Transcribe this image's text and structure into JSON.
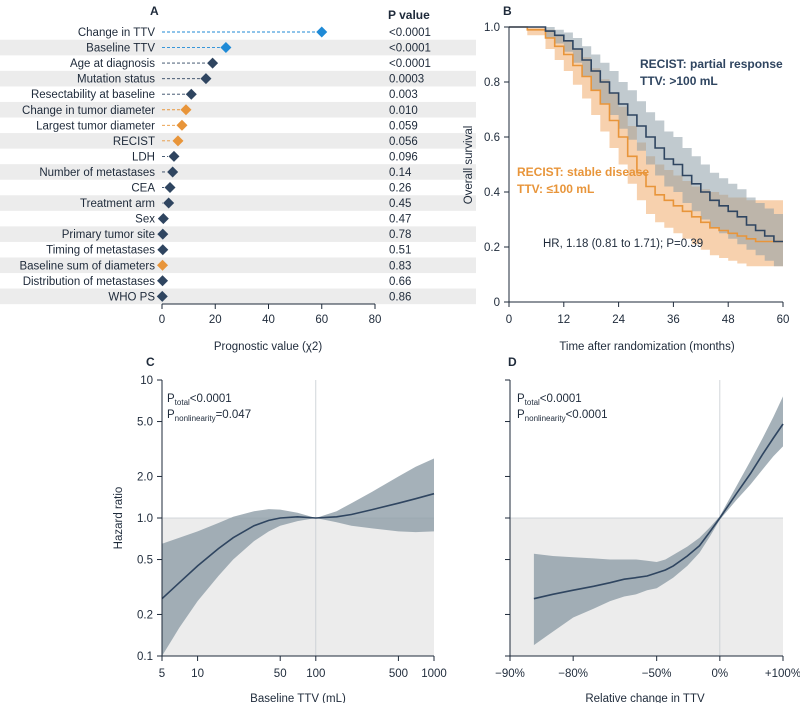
{
  "colors": {
    "navy": "#2f4560",
    "blue": "#1f8ad6",
    "orange": "#e8953a",
    "band_gray": "#8e9ea8",
    "stripe": "#ececec",
    "orange_band": "#f6c9a0",
    "axis": "#1e2a3a"
  },
  "panels": {
    "A": {
      "letter": "A",
      "pvalue_header": "P value",
      "xlabel": "Prognostic value (χ2)",
      "xticks": [
        "0",
        "20",
        "40",
        "60",
        "80"
      ]
    },
    "B": {
      "letter": "B",
      "ylabel": "Overall survival",
      "xlabel": "Time after randomization (months)",
      "xticks": [
        "0",
        "12",
        "24",
        "36",
        "48",
        "60"
      ],
      "yticks": [
        "0",
        "0.2",
        "0.4",
        "0.6",
        "0.8",
        "1.0"
      ],
      "label_navy_1": "RECIST: partial response",
      "label_navy_2": "TTV: >100 mL",
      "label_orange_1": "RECIST: stable disease",
      "label_orange_2": "TTV: ≤100 mL",
      "hr_text": "HR, 1.18 (0.81 to 1.71); P=0.39"
    },
    "C": {
      "letter": "C",
      "ylabel": "Hazard ratio",
      "xlabel": "Baseline TTV (mL)",
      "xticks": [
        "5",
        "10",
        "50",
        "100",
        "500",
        "1000"
      ],
      "yticks": [
        "0.1",
        "0.2",
        "0.5",
        "1.0",
        "2.0",
        "5.0",
        "10"
      ],
      "p_total_label": "P",
      "p_total_sub": "total",
      "p_total_value": "<0.0001",
      "p_nonlin_label": "P",
      "p_nonlin_sub": "nonlinearity",
      "p_nonlin_value": "=0.047"
    },
    "D": {
      "letter": "D",
      "xlabel": "Relative change in TTV",
      "xticks": [
        "−90%",
        "−80%",
        "−50%",
        "0%",
        "+100%"
      ],
      "p_total_label": "P",
      "p_total_sub": "total",
      "p_total_value": "<0.0001",
      "p_nonlin_label": "P",
      "p_nonlin_sub": "nonlinearity",
      "p_nonlin_value": "<0.0001"
    }
  },
  "chart_data": [
    {
      "panel": "A",
      "type": "scatter",
      "xlabel": "Prognostic value (χ2)",
      "xlim": [
        0,
        80
      ],
      "items": [
        {
          "label": "Change in TTV",
          "value": 60,
          "p": "<0.0001",
          "color": "#1f8ad6"
        },
        {
          "label": "Baseline TTV",
          "value": 24,
          "p": "<0.0001",
          "color": "#1f8ad6"
        },
        {
          "label": "Age at diagnosis",
          "value": 19,
          "p": "<0.0001",
          "color": "#2f4560"
        },
        {
          "label": "Mutation status",
          "value": 16.5,
          "p": "0.0003",
          "color": "#2f4560"
        },
        {
          "label": "Resectability at baseline",
          "value": 11,
          "p": "0.003",
          "color": "#2f4560"
        },
        {
          "label": "Change in tumor diameter",
          "value": 9,
          "p": "0.010",
          "color": "#e8953a"
        },
        {
          "label": "Largest tumor diameter",
          "value": 7.5,
          "p": "0.059",
          "color": "#e8953a"
        },
        {
          "label": "RECIST",
          "value": 6,
          "p": "0.056",
          "color": "#e8953a"
        },
        {
          "label": "LDH",
          "value": 4.5,
          "p": "0.096",
          "color": "#2f4560"
        },
        {
          "label": "Number of metastases",
          "value": 4,
          "p": "0.14",
          "color": "#2f4560"
        },
        {
          "label": "CEA",
          "value": 3,
          "p": "0.26",
          "color": "#2f4560"
        },
        {
          "label": "Treatment arm",
          "value": 2.5,
          "p": "0.45",
          "color": "#2f4560"
        },
        {
          "label": "Sex",
          "value": 0.5,
          "p": "0.47",
          "color": "#2f4560"
        },
        {
          "label": "Primary tumor site",
          "value": 0.3,
          "p": "0.78",
          "color": "#2f4560"
        },
        {
          "label": "Timing of metastases",
          "value": 0.3,
          "p": "0.51",
          "color": "#2f4560"
        },
        {
          "label": "Baseline sum of diameters",
          "value": 0.2,
          "p": "0.83",
          "color": "#e8953a"
        },
        {
          "label": "Distribution of metastases",
          "value": 0.2,
          "p": "0.66",
          "color": "#2f4560"
        },
        {
          "label": "WHO PS",
          "value": 0.1,
          "p": "0.86",
          "color": "#2f4560"
        }
      ]
    },
    {
      "panel": "B",
      "type": "line",
      "xlabel": "Time after randomization (months)",
      "ylabel": "Overall survival",
      "xlim": [
        0,
        60
      ],
      "ylim": [
        0,
        1
      ],
      "series": [
        {
          "name": "RECIST: partial response TTV: >100 mL",
          "color": "#2f4560",
          "x": [
            0,
            4,
            8,
            10,
            12,
            14,
            16,
            18,
            20,
            22,
            24,
            26,
            28,
            30,
            32,
            34,
            36,
            38,
            40,
            42,
            44,
            46,
            48,
            50,
            52,
            54,
            56,
            58,
            60
          ],
          "y": [
            1.0,
            1.0,
            0.985,
            0.97,
            0.95,
            0.92,
            0.88,
            0.84,
            0.8,
            0.76,
            0.72,
            0.68,
            0.64,
            0.6,
            0.56,
            0.52,
            0.5,
            0.46,
            0.43,
            0.4,
            0.37,
            0.35,
            0.33,
            0.31,
            0.28,
            0.26,
            0.24,
            0.22,
            0.22
          ],
          "lower": [
            1.0,
            1.0,
            0.96,
            0.94,
            0.91,
            0.87,
            0.82,
            0.77,
            0.72,
            0.68,
            0.63,
            0.59,
            0.55,
            0.5,
            0.46,
            0.42,
            0.4,
            0.36,
            0.33,
            0.3,
            0.27,
            0.25,
            0.23,
            0.21,
            0.19,
            0.17,
            0.15,
            0.13,
            0.13
          ],
          "upper": [
            1.0,
            1.0,
            1.0,
            0.99,
            0.98,
            0.96,
            0.93,
            0.9,
            0.87,
            0.84,
            0.8,
            0.77,
            0.73,
            0.69,
            0.66,
            0.62,
            0.6,
            0.56,
            0.53,
            0.5,
            0.47,
            0.45,
            0.43,
            0.41,
            0.38,
            0.36,
            0.34,
            0.32,
            0.32
          ]
        },
        {
          "name": "RECIST: stable disease TTV: ≤100 mL",
          "color": "#e8953a",
          "x": [
            0,
            4,
            8,
            10,
            12,
            14,
            16,
            18,
            20,
            22,
            24,
            26,
            28,
            30,
            32,
            34,
            36,
            38,
            40,
            42,
            44,
            46,
            48,
            50,
            52,
            54,
            56,
            58,
            60
          ],
          "y": [
            1.0,
            0.99,
            0.96,
            0.93,
            0.9,
            0.86,
            0.82,
            0.77,
            0.72,
            0.66,
            0.6,
            0.53,
            0.47,
            0.42,
            0.39,
            0.37,
            0.35,
            0.33,
            0.31,
            0.29,
            0.27,
            0.26,
            0.25,
            0.24,
            0.23,
            0.22,
            0.22,
            0.22,
            0.22
          ],
          "lower": [
            1.0,
            0.97,
            0.92,
            0.88,
            0.84,
            0.79,
            0.74,
            0.68,
            0.62,
            0.56,
            0.5,
            0.43,
            0.37,
            0.32,
            0.29,
            0.27,
            0.25,
            0.23,
            0.21,
            0.19,
            0.17,
            0.16,
            0.15,
            0.14,
            0.13,
            0.13,
            0.13,
            0.13,
            0.13
          ],
          "upper": [
            1.0,
            1.0,
            0.99,
            0.97,
            0.95,
            0.92,
            0.89,
            0.85,
            0.81,
            0.76,
            0.71,
            0.64,
            0.58,
            0.53,
            0.5,
            0.48,
            0.46,
            0.44,
            0.42,
            0.41,
            0.4,
            0.39,
            0.38,
            0.38,
            0.37,
            0.37,
            0.37,
            0.37,
            0.37
          ]
        }
      ],
      "annotation": "HR, 1.18 (0.81 to 1.71); P=0.39"
    },
    {
      "panel": "C",
      "type": "line",
      "xlabel": "Baseline TTV (mL)",
      "ylabel": "Hazard ratio",
      "xscale": "log",
      "yscale": "log",
      "xlim": [
        5,
        1000
      ],
      "ylim": [
        0.1,
        10
      ],
      "x": [
        5,
        7,
        10,
        15,
        20,
        30,
        40,
        50,
        70,
        100,
        150,
        200,
        300,
        500,
        700,
        1000
      ],
      "y": [
        0.26,
        0.34,
        0.45,
        0.6,
        0.72,
        0.88,
        0.96,
        1.0,
        1.02,
        1.0,
        1.02,
        1.06,
        1.15,
        1.28,
        1.38,
        1.5
      ],
      "lower": [
        0.1,
        0.16,
        0.25,
        0.38,
        0.5,
        0.68,
        0.8,
        0.88,
        0.95,
        1.0,
        0.93,
        0.88,
        0.84,
        0.8,
        0.79,
        0.8
      ],
      "upper": [
        0.65,
        0.72,
        0.8,
        0.92,
        1.02,
        1.12,
        1.16,
        1.15,
        1.09,
        1.0,
        1.12,
        1.28,
        1.55,
        2.0,
        2.35,
        2.7
      ],
      "reference_y": 1.0,
      "reference_x": 100,
      "annotation": [
        "Ptotal<0.0001",
        "Pnonlinearity=0.047"
      ]
    },
    {
      "panel": "D",
      "type": "line",
      "xlabel": "Relative change in TTV",
      "xscale": "log2-ratio",
      "yscale": "log",
      "xlim": [
        -90,
        100
      ],
      "ylim": [
        0.1,
        10
      ],
      "x": [
        -87,
        -84,
        -80,
        -75,
        -70,
        -65,
        -60,
        -55,
        -50,
        -45,
        -40,
        -30,
        -20,
        -10,
        0,
        20,
        40,
        60,
        80,
        100
      ],
      "y": [
        0.26,
        0.28,
        0.3,
        0.32,
        0.34,
        0.36,
        0.37,
        0.38,
        0.4,
        0.42,
        0.45,
        0.53,
        0.63,
        0.8,
        1.0,
        1.5,
        2.1,
        2.9,
        3.8,
        4.8
      ],
      "lower": [
        0.12,
        0.15,
        0.19,
        0.22,
        0.25,
        0.27,
        0.28,
        0.3,
        0.31,
        0.34,
        0.37,
        0.45,
        0.56,
        0.74,
        0.97,
        1.35,
        1.75,
        2.25,
        2.8,
        3.3
      ],
      "upper": [
        0.55,
        0.53,
        0.52,
        0.51,
        0.5,
        0.5,
        0.5,
        0.49,
        0.48,
        0.5,
        0.54,
        0.62,
        0.72,
        0.86,
        1.03,
        1.7,
        2.6,
        3.8,
        5.4,
        7.6
      ],
      "reference_y": 1.0,
      "reference_x": 0,
      "annotation": [
        "Ptotal<0.0001",
        "Pnonlinearity<0.0001"
      ]
    }
  ]
}
